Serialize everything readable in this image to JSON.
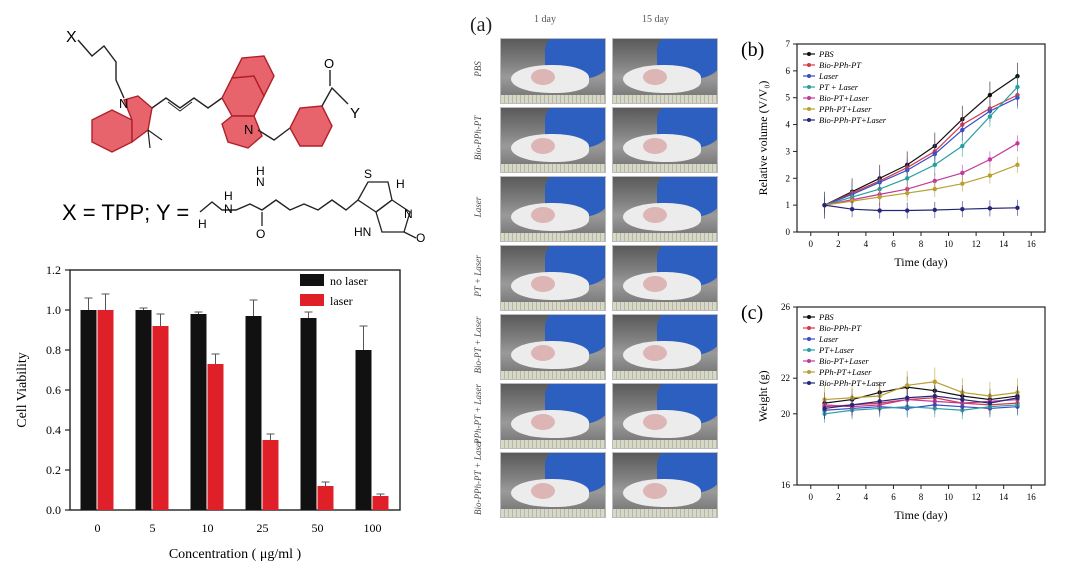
{
  "structure": {
    "x_label": "X",
    "y_label": "Y",
    "atom_N1": "N",
    "atom_N2": "N",
    "atom_O": "O",
    "substituents": "X = TPP; Y =",
    "biotin_H1": "H",
    "biotin_H2": "H",
    "biotin_N1": "N",
    "biotin_N2": "N",
    "biotin_S": "S",
    "biotin_H3": "H",
    "biotin_HN": "HN",
    "biotin_O1": "O",
    "biotin_O2": "O",
    "biotin_NH": "N",
    "biotin_NH_H": "H"
  },
  "photos": {
    "panel_label": "(a)",
    "col_labels": [
      "1 day",
      "15 day"
    ],
    "row_labels": [
      "PBS",
      "Bio-PPh-PT",
      "Laser",
      "PT + Laser",
      "Bio-PT + Laser",
      "PPh-PT + Laser",
      "Bio-PPh-PT + Laser"
    ]
  },
  "chart_data": [
    {
      "type": "bar",
      "title": "",
      "xlabel": "Concentration ( μg/ml )",
      "ylabel": "Cell Viability",
      "categories": [
        "0",
        "5",
        "10",
        "25",
        "50",
        "100"
      ],
      "ylim": [
        0,
        1.2
      ],
      "yticks": [
        "0.0",
        "0.2",
        "0.4",
        "0.6",
        "0.8",
        "1.0",
        "1.2"
      ],
      "legend_position": "top-right",
      "series": [
        {
          "name": "no laser",
          "color": "#111111",
          "values": [
            1.0,
            1.0,
            0.98,
            0.97,
            0.96,
            0.8
          ],
          "errors": [
            0.06,
            0.01,
            0.01,
            0.08,
            0.03,
            0.12
          ]
        },
        {
          "name": "laser",
          "color": "#e02028",
          "values": [
            1.0,
            0.92,
            0.73,
            0.35,
            0.12,
            0.07
          ],
          "errors": [
            0.08,
            0.06,
            0.05,
            0.03,
            0.02,
            0.01
          ]
        }
      ]
    },
    {
      "type": "line",
      "panel_label": "(b)",
      "xlabel": "Time (day)",
      "ylabel": "Relative volume (V/V₀)",
      "xlim": [
        -1,
        17
      ],
      "ylim": [
        0,
        7
      ],
      "xticks": [
        "0",
        "2",
        "4",
        "6",
        "8",
        "10",
        "12",
        "14",
        "16"
      ],
      "yticks": [
        "0",
        "1",
        "2",
        "3",
        "4",
        "5",
        "6",
        "7"
      ],
      "legend_position": "top-left",
      "x": [
        1,
        3,
        5,
        7,
        9,
        11,
        13,
        15
      ],
      "series": [
        {
          "name": "PBS",
          "color": "#111111",
          "values": [
            1.0,
            1.5,
            2.0,
            2.5,
            3.2,
            4.2,
            5.1,
            5.8
          ],
          "error": 0.5
        },
        {
          "name": "Bio-PPh-PT",
          "color": "#d33a4a",
          "values": [
            1.0,
            1.45,
            1.9,
            2.4,
            3.0,
            4.0,
            4.6,
            5.1
          ],
          "error": 0.4
        },
        {
          "name": "Laser",
          "color": "#3a4bc8",
          "values": [
            1.0,
            1.4,
            1.85,
            2.3,
            2.9,
            3.8,
            4.5,
            5.0
          ],
          "error": 0.4
        },
        {
          "name": "PT + Laser",
          "color": "#2a9e9e",
          "values": [
            1.0,
            1.3,
            1.6,
            2.0,
            2.5,
            3.2,
            4.3,
            5.4
          ],
          "error": 0.4
        },
        {
          "name": "Bio-PT+Laser",
          "color": "#c03a9a",
          "values": [
            1.0,
            1.2,
            1.4,
            1.6,
            1.9,
            2.2,
            2.7,
            3.3
          ],
          "error": 0.3
        },
        {
          "name": "PPh-PT+Laser",
          "color": "#b8a030",
          "values": [
            1.0,
            1.15,
            1.3,
            1.45,
            1.6,
            1.8,
            2.1,
            2.5
          ],
          "error": 0.3
        },
        {
          "name": "Bio-PPh-PT+Laser",
          "color": "#26267a",
          "values": [
            1.0,
            0.85,
            0.8,
            0.8,
            0.82,
            0.85,
            0.88,
            0.9
          ],
          "error": 0.3
        }
      ]
    },
    {
      "type": "line",
      "panel_label": "(c)",
      "xlabel": "Time (day)",
      "ylabel": "Weight (g)",
      "xlim": [
        -1,
        17
      ],
      "ylim": [
        16,
        26
      ],
      "xticks": [
        "0",
        "2",
        "4",
        "6",
        "8",
        "10",
        "12",
        "14",
        "16"
      ],
      "yticks": [
        "16",
        "20",
        "22",
        "26"
      ],
      "legend_position": "top-left",
      "x": [
        1,
        3,
        5,
        7,
        9,
        11,
        13,
        15
      ],
      "series": [
        {
          "name": "PBS",
          "color": "#111111",
          "values": [
            20.6,
            20.8,
            21.2,
            21.5,
            21.3,
            21.0,
            20.8,
            21.0
          ],
          "error": 0.6
        },
        {
          "name": "Bio-PPh-PT",
          "color": "#d33a4a",
          "values": [
            20.4,
            20.5,
            20.6,
            20.8,
            20.9,
            20.6,
            20.5,
            20.6
          ],
          "error": 0.6
        },
        {
          "name": "Laser",
          "color": "#3a4bc8",
          "values": [
            20.2,
            20.3,
            20.4,
            20.3,
            20.5,
            20.4,
            20.3,
            20.4
          ],
          "error": 0.5
        },
        {
          "name": "PT+Laser",
          "color": "#2a9e9e",
          "values": [
            20.0,
            20.2,
            20.3,
            20.4,
            20.3,
            20.2,
            20.4,
            20.5
          ],
          "error": 0.5
        },
        {
          "name": "Bio-PT+Laser",
          "color": "#c03a9a",
          "values": [
            20.5,
            20.4,
            20.5,
            20.8,
            20.7,
            20.6,
            20.7,
            20.8
          ],
          "error": 0.5
        },
        {
          "name": "PPh-PT+Laser",
          "color": "#b8a030",
          "values": [
            20.8,
            20.9,
            21.0,
            21.6,
            21.8,
            21.2,
            21.0,
            21.2
          ],
          "error": 0.8
        },
        {
          "name": "Bio-PPh-PT+Laser",
          "color": "#26267a",
          "values": [
            20.3,
            20.5,
            20.7,
            20.9,
            21.0,
            20.8,
            20.6,
            20.9
          ],
          "error": 0.6
        }
      ]
    }
  ]
}
